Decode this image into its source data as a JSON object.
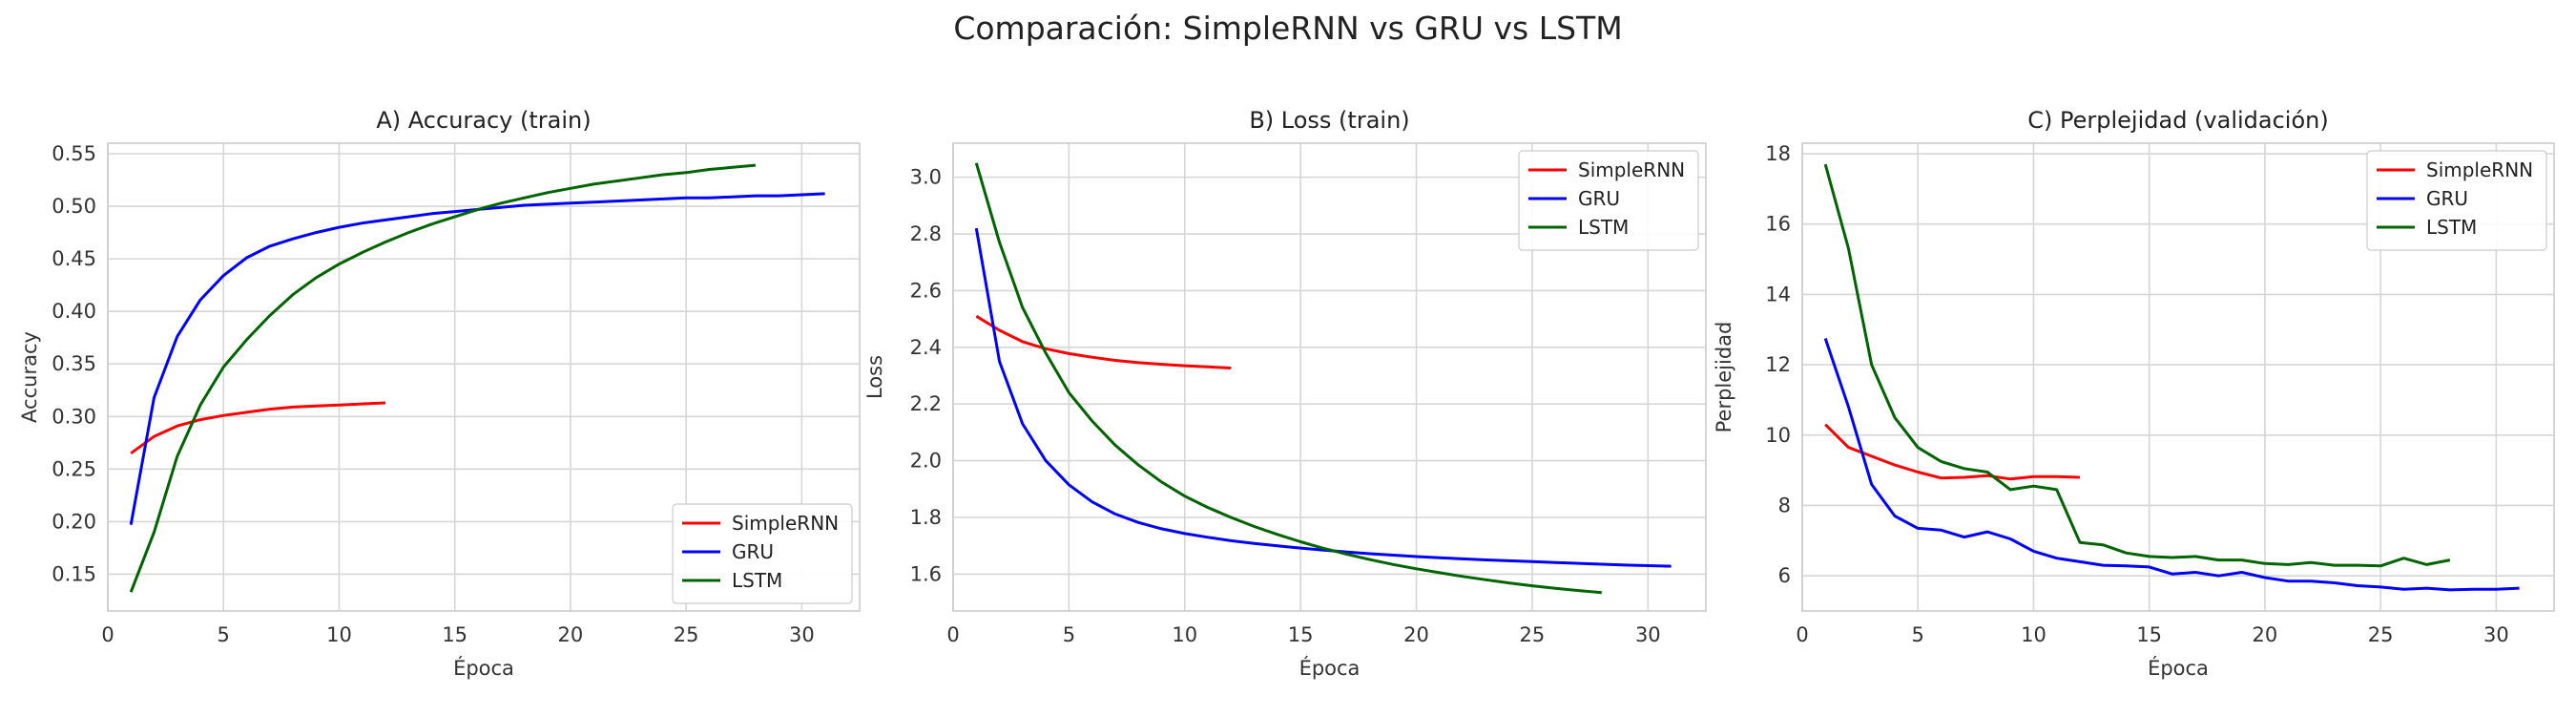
{
  "figure": {
    "suptitle": "Comparación: SimpleRNN vs GRU vs LSTM"
  },
  "colors": {
    "SimpleRNN": "#ff0000",
    "GRU": "#0000ff",
    "LSTM": "#006400",
    "grid": "#d6d6d6",
    "spine": "#cccccc"
  },
  "chart_data": [
    {
      "type": "line",
      "title": "A) Accuracy (train)",
      "xlabel": "Época",
      "ylabel": "Accuracy",
      "xlim": [
        0,
        32.5
      ],
      "ylim": [
        0.115,
        0.56
      ],
      "xticks": [
        0,
        5,
        10,
        15,
        20,
        25,
        30
      ],
      "yticks": [
        0.15,
        0.2,
        0.25,
        0.3,
        0.35,
        0.4,
        0.45,
        0.5,
        0.55
      ],
      "ytick_labels": [
        "0.15",
        "0.20",
        "0.25",
        "0.30",
        "0.35",
        "0.40",
        "0.45",
        "0.50",
        "0.55"
      ],
      "grid": true,
      "legend": "lower right",
      "series": [
        {
          "name": "SimpleRNN",
          "x": [
            1,
            2,
            3,
            4,
            5,
            6,
            7,
            8,
            9,
            10,
            11,
            12
          ],
          "y": [
            0.265,
            0.281,
            0.291,
            0.297,
            0.301,
            0.304,
            0.307,
            0.309,
            0.31,
            0.311,
            0.312,
            0.313
          ]
        },
        {
          "name": "GRU",
          "x": [
            1,
            2,
            3,
            4,
            5,
            6,
            7,
            8,
            9,
            10,
            11,
            12,
            13,
            14,
            15,
            16,
            17,
            18,
            19,
            20,
            21,
            22,
            23,
            24,
            25,
            26,
            27,
            28,
            29,
            30,
            31
          ],
          "y": [
            0.197,
            0.318,
            0.376,
            0.411,
            0.434,
            0.451,
            0.462,
            0.469,
            0.475,
            0.48,
            0.484,
            0.487,
            0.49,
            0.493,
            0.495,
            0.497,
            0.499,
            0.501,
            0.502,
            0.503,
            0.504,
            0.505,
            0.506,
            0.507,
            0.508,
            0.508,
            0.509,
            0.51,
            0.51,
            0.511,
            0.512
          ]
        },
        {
          "name": "LSTM",
          "x": [
            1,
            2,
            3,
            4,
            5,
            6,
            7,
            8,
            9,
            10,
            11,
            12,
            13,
            14,
            15,
            16,
            17,
            18,
            19,
            20,
            21,
            22,
            23,
            24,
            25,
            26,
            27,
            28
          ],
          "y": [
            0.133,
            0.19,
            0.262,
            0.311,
            0.347,
            0.373,
            0.396,
            0.416,
            0.432,
            0.445,
            0.456,
            0.466,
            0.475,
            0.483,
            0.49,
            0.497,
            0.503,
            0.508,
            0.513,
            0.517,
            0.521,
            0.524,
            0.527,
            0.53,
            0.532,
            0.535,
            0.537,
            0.539
          ]
        }
      ]
    },
    {
      "type": "line",
      "title": "B) Loss (train)",
      "xlabel": "Época",
      "ylabel": "Loss",
      "xlim": [
        0,
        32.5
      ],
      "ylim": [
        1.47,
        3.12
      ],
      "xticks": [
        0,
        5,
        10,
        15,
        20,
        25,
        30
      ],
      "yticks": [
        1.6,
        1.8,
        2.0,
        2.2,
        2.4,
        2.6,
        2.8,
        3.0
      ],
      "ytick_labels": [
        "1.6",
        "1.8",
        "2.0",
        "2.2",
        "2.4",
        "2.6",
        "2.8",
        "3.0"
      ],
      "grid": true,
      "legend": "upper right",
      "series": [
        {
          "name": "SimpleRNN",
          "x": [
            1,
            2,
            3,
            4,
            5,
            6,
            7,
            8,
            9,
            10,
            11,
            12
          ],
          "y": [
            2.51,
            2.46,
            2.42,
            2.395,
            2.378,
            2.365,
            2.354,
            2.346,
            2.34,
            2.335,
            2.331,
            2.327
          ]
        },
        {
          "name": "GRU",
          "x": [
            1,
            2,
            3,
            4,
            5,
            6,
            7,
            8,
            9,
            10,
            11,
            12,
            13,
            14,
            15,
            16,
            17,
            18,
            19,
            20,
            21,
            22,
            23,
            24,
            25,
            26,
            27,
            28,
            29,
            30,
            31
          ],
          "y": [
            2.82,
            2.35,
            2.13,
            2.0,
            1.915,
            1.855,
            1.812,
            1.782,
            1.76,
            1.743,
            1.73,
            1.718,
            1.708,
            1.7,
            1.692,
            1.685,
            1.678,
            1.672,
            1.667,
            1.662,
            1.658,
            1.654,
            1.65,
            1.647,
            1.644,
            1.641,
            1.638,
            1.635,
            1.632,
            1.63,
            1.628
          ]
        },
        {
          "name": "LSTM",
          "x": [
            1,
            2,
            3,
            4,
            5,
            6,
            7,
            8,
            9,
            10,
            11,
            12,
            13,
            14,
            15,
            16,
            17,
            18,
            19,
            20,
            21,
            22,
            23,
            24,
            25,
            26,
            27,
            28
          ],
          "y": [
            3.05,
            2.77,
            2.54,
            2.38,
            2.24,
            2.14,
            2.055,
            1.985,
            1.925,
            1.875,
            1.835,
            1.8,
            1.768,
            1.74,
            1.714,
            1.691,
            1.67,
            1.651,
            1.634,
            1.619,
            1.605,
            1.592,
            1.58,
            1.569,
            1.559,
            1.55,
            1.542,
            1.535
          ]
        }
      ]
    },
    {
      "type": "line",
      "title": "C) Perplejidad (validación)",
      "xlabel": "Época",
      "ylabel": "Perplejidad",
      "xlim": [
        0,
        32.5
      ],
      "ylim": [
        5.0,
        18.3
      ],
      "xticks": [
        0,
        5,
        10,
        15,
        20,
        25,
        30
      ],
      "yticks": [
        6,
        8,
        10,
        12,
        14,
        16,
        18
      ],
      "ytick_labels": [
        "6",
        "8",
        "10",
        "12",
        "14",
        "16",
        "18"
      ],
      "grid": true,
      "legend": "upper right",
      "series": [
        {
          "name": "SimpleRNN",
          "x": [
            1,
            2,
            3,
            4,
            5,
            6,
            7,
            8,
            9,
            10,
            11,
            12
          ],
          "y": [
            10.3,
            9.65,
            9.4,
            9.15,
            8.95,
            8.78,
            8.8,
            8.85,
            8.75,
            8.82,
            8.82,
            8.8
          ]
        },
        {
          "name": "GRU",
          "x": [
            1,
            2,
            3,
            4,
            5,
            6,
            7,
            8,
            9,
            10,
            11,
            12,
            13,
            14,
            15,
            16,
            17,
            18,
            19,
            20,
            21,
            22,
            23,
            24,
            25,
            26,
            27,
            28,
            29,
            30,
            31
          ],
          "y": [
            12.75,
            10.8,
            8.6,
            7.7,
            7.35,
            7.3,
            7.1,
            7.25,
            7.05,
            6.7,
            6.5,
            6.4,
            6.3,
            6.28,
            6.25,
            6.05,
            6.1,
            6.0,
            6.1,
            5.95,
            5.85,
            5.85,
            5.8,
            5.72,
            5.68,
            5.62,
            5.65,
            5.6,
            5.62,
            5.62,
            5.65
          ]
        },
        {
          "name": "LSTM",
          "x": [
            1,
            2,
            3,
            4,
            5,
            6,
            7,
            8,
            9,
            10,
            11,
            12,
            13,
            14,
            15,
            16,
            17,
            18,
            19,
            20,
            21,
            22,
            23,
            24,
            25,
            26,
            27,
            28
          ],
          "y": [
            17.7,
            15.3,
            12.0,
            10.5,
            9.65,
            9.25,
            9.05,
            8.95,
            8.45,
            8.55,
            8.45,
            6.95,
            6.88,
            6.65,
            6.55,
            6.52,
            6.55,
            6.45,
            6.45,
            6.35,
            6.32,
            6.38,
            6.3,
            6.3,
            6.28,
            6.5,
            6.32,
            6.45
          ]
        }
      ]
    }
  ]
}
